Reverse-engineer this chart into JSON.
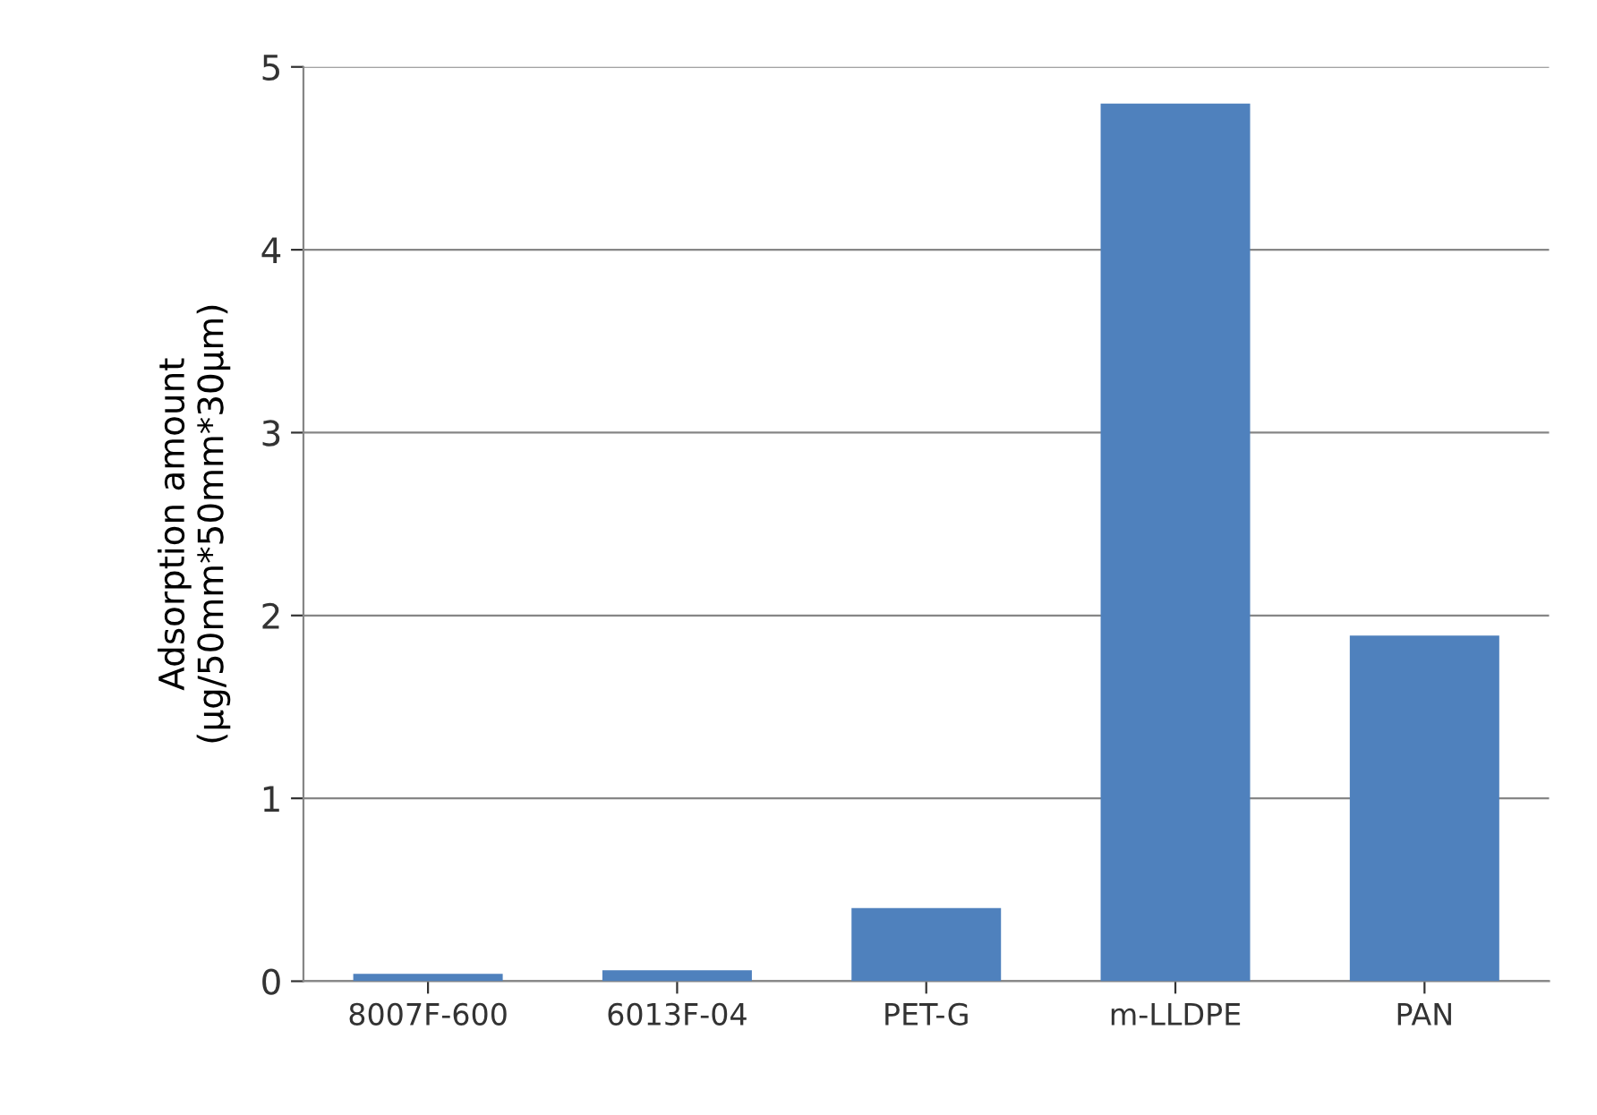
{
  "chart_data": {
    "type": "bar",
    "ylabel": "Adsorption amount\n(μg/50mm*50mm*30μm)",
    "categories": [
      "8007F-600",
      "6013F-04",
      "PET-G",
      "m-LLDPE",
      "PAN"
    ],
    "values": [
      0.04,
      0.06,
      0.4,
      4.8,
      1.89
    ],
    "color": "#4f81bd",
    "ylim": [
      0,
      5
    ],
    "yticks": [
      0,
      1,
      2,
      3,
      4,
      5
    ],
    "grid": "y",
    "legend": false
  }
}
